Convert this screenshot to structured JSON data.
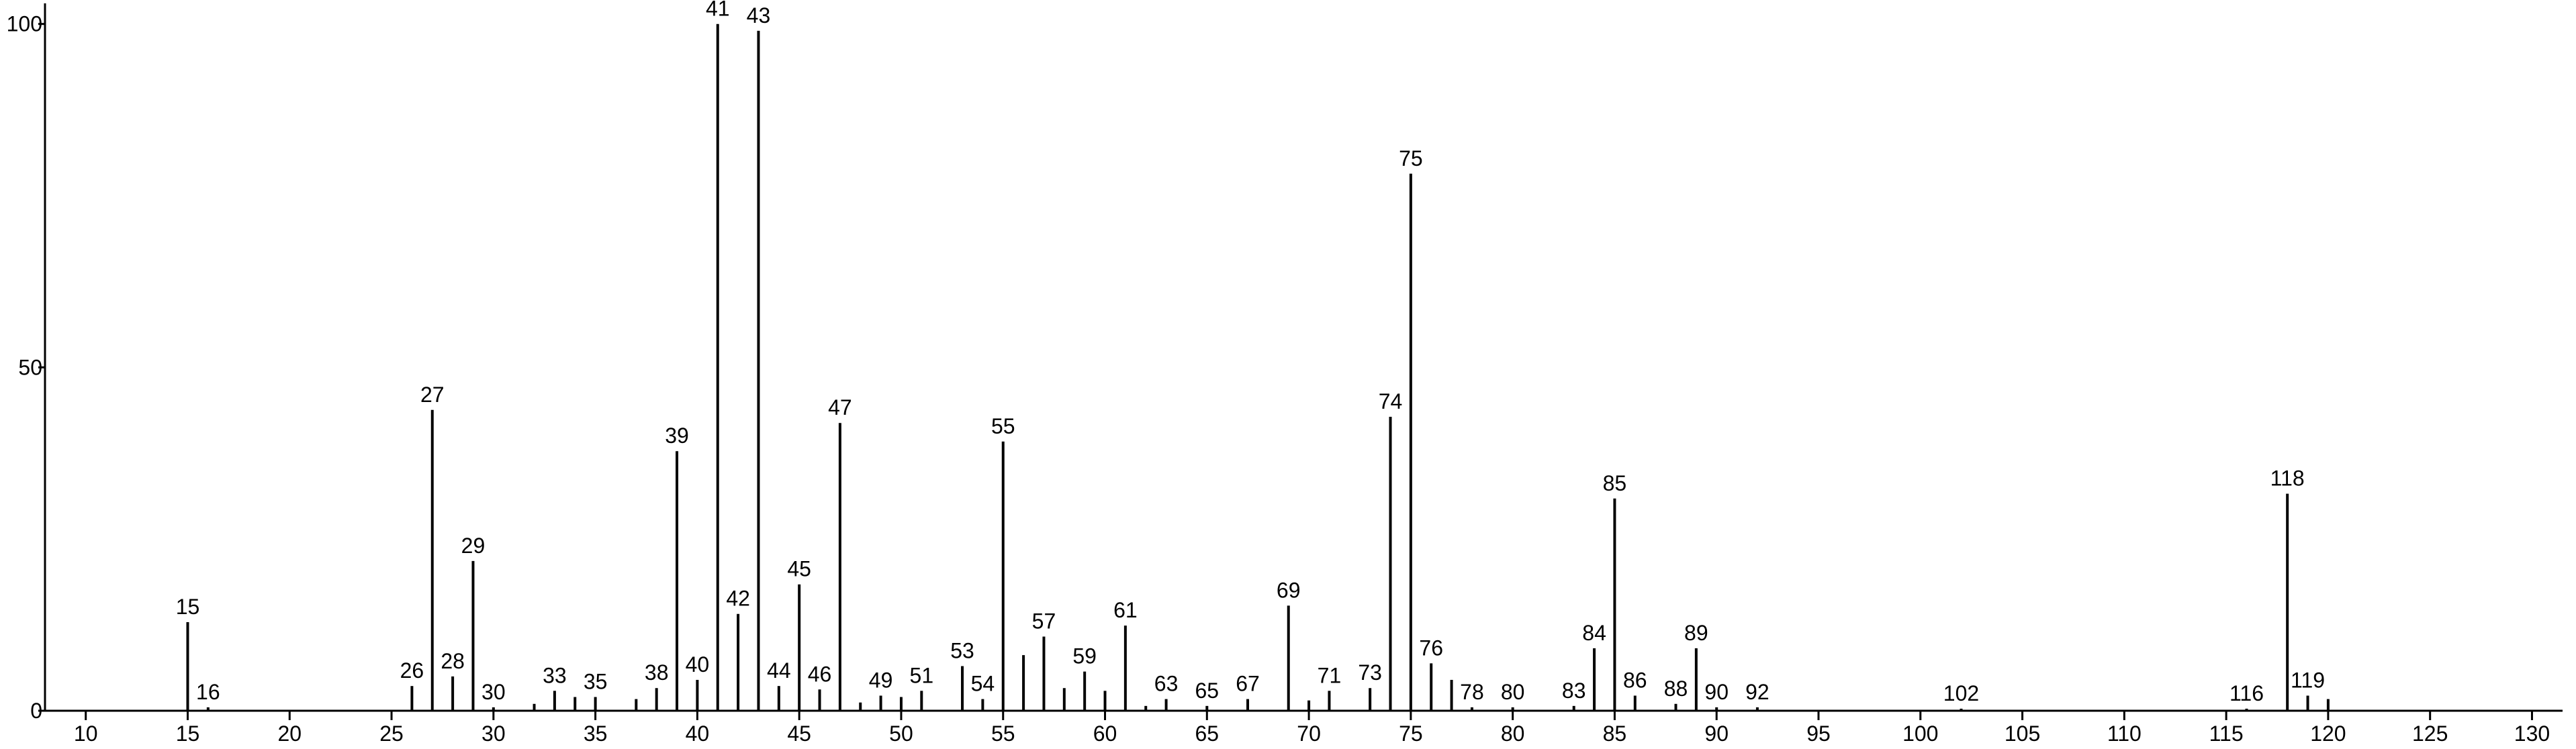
{
  "chart_data": {
    "type": "stem",
    "x": [
      15,
      16,
      26,
      27,
      28,
      29,
      30,
      32,
      33,
      34,
      35,
      37,
      38,
      39,
      40,
      41,
      42,
      43,
      44,
      45,
      46,
      47,
      48,
      49,
      50,
      51,
      53,
      54,
      55,
      56,
      57,
      58,
      59,
      60,
      61,
      62,
      63,
      65,
      67,
      69,
      70,
      71,
      73,
      74,
      75,
      76,
      77,
      78,
      80,
      83,
      84,
      85,
      86,
      88,
      89,
      90,
      92,
      102,
      116,
      118,
      119,
      120
    ],
    "values": [
      12.9,
      0.5,
      3.6,
      43.8,
      5,
      21.8,
      0.5,
      1,
      2.9,
      2,
      2,
      1.7,
      3.3,
      37.8,
      4.5,
      100,
      14.1,
      99,
      3.6,
      18.4,
      3.1,
      41.9,
      1.2,
      2.2,
      2,
      2.9,
      6.5,
      1.7,
      39.2,
      8.1,
      10.8,
      3.3,
      5.7,
      2.9,
      12.4,
      0.7,
      1.7,
      0.7,
      1.7,
      15.3,
      1.5,
      2.9,
      3.3,
      42.8,
      78.2,
      6.9,
      4.5,
      0.5,
      0.5,
      0.7,
      9.1,
      30.9,
      2.2,
      1,
      9.1,
      0.5,
      0.5,
      0.3,
      0.3,
      31.6,
      2.2,
      1.7
    ],
    "point_labels": [
      "15",
      "16",
      "26",
      "27",
      "28",
      "29",
      "30",
      null,
      "33",
      null,
      "35",
      null,
      "38",
      "39",
      "40",
      "41",
      "42",
      "43",
      "44",
      "45",
      "46",
      "47",
      null,
      "49",
      null,
      "51",
      "53",
      "54",
      "55",
      null,
      "57",
      null,
      "59",
      null,
      "61",
      null,
      "63",
      "65",
      "67",
      "69",
      null,
      "71",
      "73",
      "74",
      "75",
      "76",
      null,
      "78",
      "80",
      "83",
      "84",
      "85",
      "86",
      "88",
      "89",
      "90",
      "92",
      "102",
      "116",
      "118",
      "119",
      null
    ],
    "color": "#000000",
    "xlim": [
      8,
      131.5
    ],
    "ylim": [
      0,
      103
    ],
    "xticks": [
      10,
      15,
      20,
      25,
      30,
      35,
      40,
      45,
      50,
      55,
      60,
      65,
      70,
      75,
      80,
      85,
      90,
      95,
      100,
      105,
      110,
      115,
      120,
      125,
      130
    ],
    "yticks": [
      0,
      50,
      100
    ]
  }
}
